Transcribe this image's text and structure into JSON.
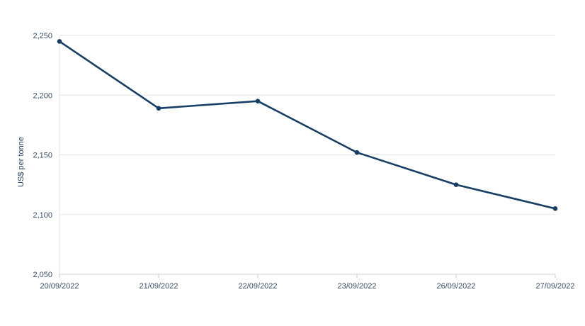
{
  "chart_data": {
    "type": "line",
    "title": "",
    "xlabel": "",
    "ylabel": "US$ per tonne",
    "categories": [
      "20/09/2022",
      "21/09/2022",
      "22/09/2022",
      "23/09/2022",
      "26/09/2022",
      "27/09/2022"
    ],
    "series": [
      {
        "values": [
          2245,
          2189,
          2195,
          2152,
          2125,
          2105
        ]
      }
    ],
    "ylim": [
      2050,
      2250
    ],
    "yticks": [
      2050,
      2100,
      2150,
      2200,
      2250
    ],
    "ytick_labels": [
      "2,050",
      "2,100",
      "2,150",
      "2,200",
      "2,250"
    ],
    "grid": true,
    "colors": {
      "line": "#173f66",
      "grid": "#e3e3e3",
      "axis": "#cfcfcf",
      "text": "#3b4f6b"
    }
  }
}
